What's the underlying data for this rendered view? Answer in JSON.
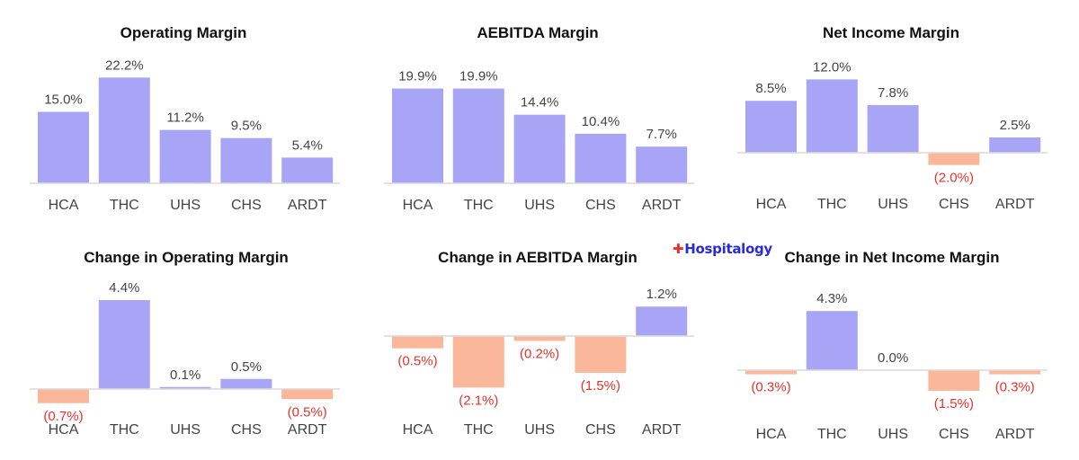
{
  "brand": {
    "name": "Hospitalogy",
    "pos_color": "#a9a5f6",
    "neg_color": "#fbb79a",
    "neg_label_color": "#e8322b"
  },
  "chart_data": [
    {
      "type": "bar",
      "title": "Operating Margin",
      "categories": [
        "HCA",
        "THC",
        "UHS",
        "CHS",
        "ARDT"
      ],
      "values": [
        15.0,
        22.2,
        11.2,
        9.5,
        5.4
      ],
      "labels": [
        "15.0%",
        "22.2%",
        "11.2%",
        "9.5%",
        "5.4%"
      ],
      "ylim": [
        0,
        25
      ]
    },
    {
      "type": "bar",
      "title": "AEBITDA Margin",
      "categories": [
        "HCA",
        "THC",
        "UHS",
        "CHS",
        "ARDT"
      ],
      "values": [
        19.9,
        19.9,
        14.4,
        10.4,
        7.7
      ],
      "labels": [
        "19.9%",
        "19.9%",
        "14.4%",
        "10.4%",
        "7.7%"
      ],
      "ylim": [
        0,
        25
      ]
    },
    {
      "type": "bar",
      "title": "Net Income Margin",
      "categories": [
        "HCA",
        "THC",
        "UHS",
        "CHS",
        "ARDT"
      ],
      "values": [
        8.5,
        12.0,
        7.8,
        -2.0,
        2.5
      ],
      "labels": [
        "8.5%",
        "12.0%",
        "7.8%",
        "(2.0%)",
        "2.5%"
      ],
      "ylim": [
        -4,
        16
      ]
    },
    {
      "type": "bar",
      "title": "Change in Operating Margin",
      "categories": [
        "HCA",
        "THC",
        "UHS",
        "CHS",
        "ARDT"
      ],
      "values": [
        -0.7,
        4.4,
        0.1,
        0.5,
        -0.5
      ],
      "labels": [
        "(0.7%)",
        "4.4%",
        "0.1%",
        "0.5%",
        "(0.5%)"
      ],
      "ylim": [
        -0.8,
        5.5
      ]
    },
    {
      "type": "bar",
      "title": "Change in AEBITDA Margin",
      "categories": [
        "HCA",
        "THC",
        "UHS",
        "CHS",
        "ARDT"
      ],
      "values": [
        -0.5,
        -2.1,
        -0.2,
        -1.5,
        1.2
      ],
      "labels": [
        "(0.5%)",
        "(2.1%)",
        "(0.2%)",
        "(1.5%)",
        "1.2%"
      ],
      "ylim": [
        -2.5,
        2.5
      ]
    },
    {
      "type": "bar",
      "title": "Change in Net Income Margin",
      "categories": [
        "HCA",
        "THC",
        "UHS",
        "CHS",
        "ARDT"
      ],
      "values": [
        -0.3,
        4.3,
        0.0,
        -1.5,
        -0.3
      ],
      "labels": [
        "(0.3%)",
        "4.3%",
        "0.0%",
        "(1.5%)",
        "(0.3%)"
      ],
      "ylim": [
        -3,
        6
      ]
    }
  ]
}
